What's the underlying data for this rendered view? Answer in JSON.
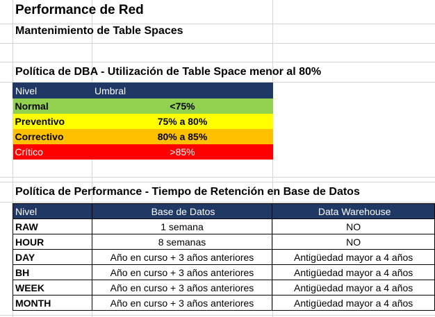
{
  "title": "Performance de Red",
  "subtitle": "Mantenimiento de Table Spaces",
  "dba": {
    "heading": "Política de DBA - Utilización de Table Space menor al 80%",
    "headers": [
      "Nivel",
      "Umbral"
    ],
    "rows": [
      {
        "nivel": "Normal",
        "umbral": "<75%",
        "color": "#92d050"
      },
      {
        "nivel": "Preventivo",
        "umbral": "75% a 80%",
        "color": "#ffff00"
      },
      {
        "nivel": "Correctivo",
        "umbral": "80% a 85%",
        "color": "#ffc000"
      },
      {
        "nivel": "Crítico",
        "umbral": ">85%",
        "color": "#ff0000"
      }
    ]
  },
  "perf": {
    "heading": "Política de Performance - Tiempo de Retención en Base de Datos",
    "headers": [
      "Nivel",
      "Base de Datos",
      "Data Warehouse"
    ],
    "rows": [
      {
        "nivel": "RAW",
        "bd": "1 semana",
        "dw": "NO"
      },
      {
        "nivel": "HOUR",
        "bd": "8 semanas",
        "dw": "NO"
      },
      {
        "nivel": "DAY",
        "bd": "Año en curso + 3 años anteriores",
        "dw": "Antigüedad mayor a 4 años"
      },
      {
        "nivel": "BH",
        "bd": "Año en curso + 3 años anteriores",
        "dw": "Antigüedad mayor a 4 años"
      },
      {
        "nivel": "WEEK",
        "bd": "Año en curso + 3 años anteriores",
        "dw": "Antigüedad mayor a 4 años"
      },
      {
        "nivel": "MONTH",
        "bd": "Año en curso + 3 años anteriores",
        "dw": "Antigüedad mayor a 4 años"
      }
    ]
  },
  "colors": {
    "header_bg": "#1f3864",
    "grid": "#d4d4d4"
  }
}
